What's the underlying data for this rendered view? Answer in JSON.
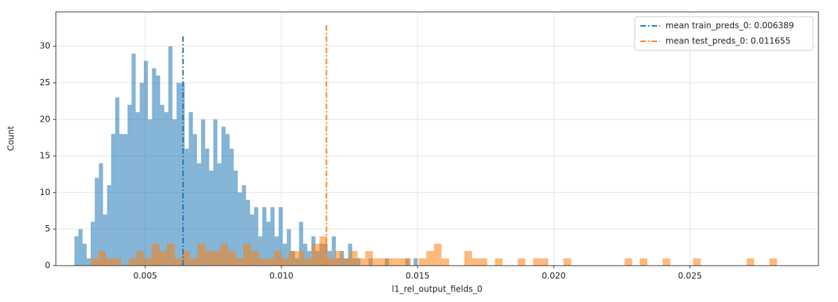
{
  "chart_data": {
    "type": "histogram",
    "xlabel": "l1_rel_output_fields_0",
    "ylabel": "Count",
    "xlim": [
      0.00172,
      0.02972
    ],
    "ylim": [
      0,
      34.7
    ],
    "xticks": [
      0.005,
      0.01,
      0.015,
      0.02,
      0.025
    ],
    "yticks": [
      0,
      5,
      10,
      15,
      20,
      25,
      30
    ],
    "xtick_labels": [
      "0.005",
      "0.010",
      "0.015",
      "0.020",
      "0.025"
    ],
    "grid": true,
    "legend": "upper right",
    "series": [
      {
        "name": "train_preds_0",
        "color": "#1f77b4",
        "bins": [
          0.0024,
          0.00255,
          0.0027,
          0.00285,
          0.003,
          0.00315,
          0.0033,
          0.00345,
          0.0036,
          0.00375,
          0.0039,
          0.00405,
          0.0042,
          0.00435,
          0.0045,
          0.00465,
          0.0048,
          0.00495,
          0.0051,
          0.00525,
          0.0054,
          0.00555,
          0.0057,
          0.00585,
          0.006,
          0.00615,
          0.0063,
          0.00645,
          0.0066,
          0.00675,
          0.0069,
          0.00705,
          0.0072,
          0.00735,
          0.0075,
          0.00765,
          0.0078,
          0.00795,
          0.0081,
          0.00825,
          0.0084,
          0.00855,
          0.0087,
          0.00885,
          0.009,
          0.00915,
          0.0093,
          0.00945,
          0.0096,
          0.00975,
          0.0099,
          0.01005,
          0.0102,
          0.01035,
          0.0105,
          0.01065,
          0.0108,
          0.01095,
          0.0111,
          0.01125,
          0.0114,
          0.01155,
          0.0117,
          0.01185,
          0.012,
          0.01215,
          0.0123,
          0.01245,
          0.0126,
          0.01275,
          0.0129,
          0.01305,
          0.0132,
          0.01335,
          0.0135,
          0.01365,
          0.0138,
          0.01395,
          0.0141,
          0.01425,
          0.0144,
          0.01455,
          0.0147,
          0.01485,
          0.015
        ],
        "values": [
          4,
          5,
          3,
          1,
          6,
          12,
          14,
          7,
          11,
          18,
          23,
          18,
          18,
          22,
          29,
          21,
          25,
          28,
          20,
          27,
          26,
          22,
          21,
          30,
          20,
          25,
          25,
          16,
          21,
          18,
          14,
          20,
          16,
          13,
          20,
          14,
          19,
          18,
          16,
          13,
          10,
          11,
          9,
          7,
          8,
          4,
          8,
          6,
          8,
          4,
          8,
          3,
          5,
          2,
          1,
          6,
          3,
          2,
          4,
          2,
          3,
          3,
          2,
          4,
          1,
          2,
          1,
          3,
          1,
          1,
          0,
          0,
          1,
          0,
          0,
          0,
          1,
          0,
          0,
          0,
          0,
          1,
          0,
          1
        ]
      },
      {
        "name": "test_preds_0",
        "color": "#ff7f0e",
        "bins": [
          0.003,
          0.00328,
          0.00356,
          0.00384,
          0.00412,
          0.0044,
          0.00468,
          0.00496,
          0.00524,
          0.00552,
          0.0058,
          0.00608,
          0.00636,
          0.00664,
          0.00692,
          0.0072,
          0.00748,
          0.00776,
          0.00804,
          0.00832,
          0.0086,
          0.00888,
          0.00916,
          0.00944,
          0.00972,
          0.01,
          0.01028,
          0.01056,
          0.01084,
          0.01112,
          0.0114,
          0.01168,
          0.01196,
          0.01224,
          0.01252,
          0.0128,
          0.01308,
          0.01336,
          0.01364,
          0.01392,
          0.0142,
          0.01448,
          0.01476,
          0.01504,
          0.01532,
          0.0156,
          0.01588,
          0.01616,
          0.01644,
          0.01672,
          0.017,
          0.01728,
          0.01756,
          0.01784,
          0.01812,
          0.0184,
          0.01868,
          0.01896,
          0.01924,
          0.01952,
          0.0198,
          0.02008,
          0.02036,
          0.02064,
          0.02092,
          0.0212,
          0.02148,
          0.02176,
          0.02204,
          0.02232,
          0.0226,
          0.02288,
          0.02316,
          0.02344,
          0.02372,
          0.024,
          0.02428,
          0.02456,
          0.02484,
          0.02512,
          0.0254,
          0.02568,
          0.02596,
          0.02624,
          0.02652,
          0.0268,
          0.02708,
          0.02736,
          0.02764,
          0.02792,
          0.0282
        ],
        "values": [
          1,
          2,
          1,
          1,
          0,
          1,
          2,
          1,
          3,
          2,
          3,
          1,
          2,
          1,
          3,
          2,
          2,
          3,
          2,
          1,
          3,
          2,
          1,
          1,
          2,
          1,
          2,
          2,
          1,
          3,
          4,
          1,
          2,
          1,
          2,
          1,
          2,
          1,
          1,
          1,
          1,
          1,
          0,
          1,
          2,
          3,
          1,
          0,
          0,
          2,
          1,
          1,
          0,
          1,
          0,
          0,
          1,
          0,
          1,
          1,
          0,
          0,
          1,
          0,
          0,
          0,
          0,
          0,
          0,
          0,
          1,
          0,
          1,
          0,
          0,
          1,
          0,
          0,
          0,
          1,
          0,
          0,
          0,
          0,
          0,
          0,
          1,
          0,
          0,
          1
        ]
      }
    ],
    "mean_lines": [
      {
        "label": "mean train_preds_0: 0.006389",
        "x": 0.006389,
        "ymax": 31.5,
        "color": "#1f77b4"
      },
      {
        "label": "mean test_preds_0: 0.011655",
        "x": 0.011655,
        "ymax": 33.0,
        "color": "#ff7f0e"
      }
    ]
  }
}
